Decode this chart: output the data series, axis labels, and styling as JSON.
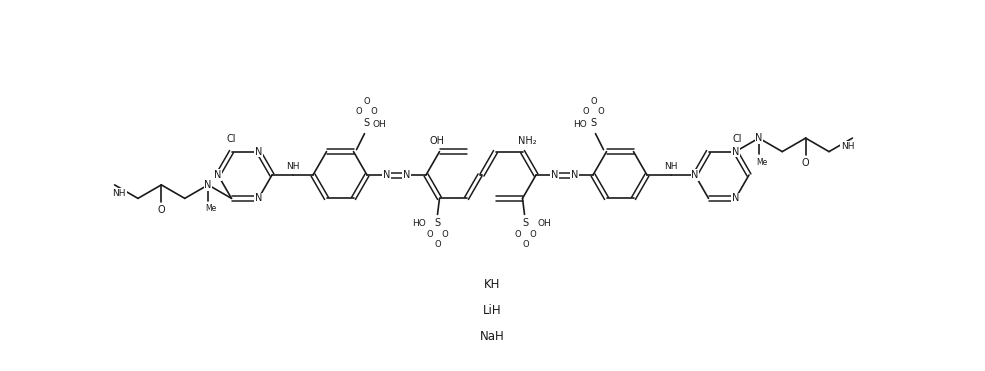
{
  "background_color": "#ffffff",
  "line_color": "#1a1a1a",
  "font_size": 7.0,
  "salt_labels": [
    "KH",
    "LiH",
    "NaH"
  ],
  "fig_width": 9.85,
  "fig_height": 3.71,
  "dpi": 100
}
